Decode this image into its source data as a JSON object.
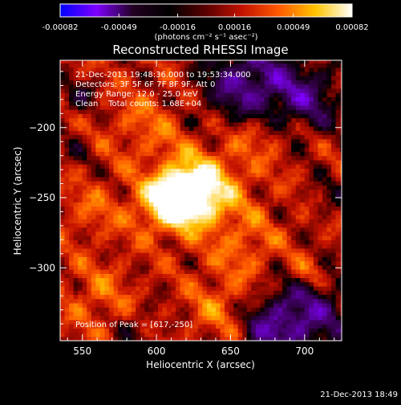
{
  "chart_data": {
    "type": "heatmap",
    "title": "Reconstructed RHESSI Image",
    "xlabel": "Heliocentric X (arcsec)",
    "ylabel": "Heliocentric Y (arcsec)",
    "xlim": [
      535,
      725
    ],
    "ylim": [
      -352,
      -152
    ],
    "x_ticks": [
      550,
      600,
      650,
      700
    ],
    "y_ticks": [
      -200,
      -250,
      -300
    ],
    "x_tick_labels": [
      "550",
      "600",
      "650",
      "700"
    ],
    "y_tick_labels": [
      "−200",
      "−250",
      "−300"
    ],
    "colorbar": {
      "min": -0.00082,
      "max": 0.00082,
      "ticks": [
        -0.00082,
        -0.00049,
        -0.00016,
        0.00016,
        0.00049,
        0.00082
      ],
      "tick_labels": [
        "-0.00082",
        "-0.00049",
        "-0.00016",
        "0.00016",
        "0.00049",
        "0.00082"
      ],
      "units_label": "(photons cm⁻² s⁻¹ asec⁻²)",
      "colormap": [
        "#0000ff",
        "#7f00ff",
        "#220022",
        "#000000",
        "#5a0000",
        "#c41200",
        "#ff5a00",
        "#ffc400",
        "#ffffff"
      ]
    },
    "annotations": {
      "time_range": "21-Dec-2013 19:48:36.000 to 19:53:34.000",
      "detectors": "Detectors: 3F 5F 6F 7F 8F 9F, Att 0",
      "energy": "Energy Range: 12.0 - 25.0 keV",
      "method": "Clean    Total counts: 1.68E+04",
      "peak": "Position of Peak = [617,-250]"
    },
    "peak": {
      "x": 617,
      "y": -250,
      "value": 0.00082
    },
    "grid": false
  },
  "footer": {
    "timestamp": "21-Dec-2013 18:49"
  }
}
